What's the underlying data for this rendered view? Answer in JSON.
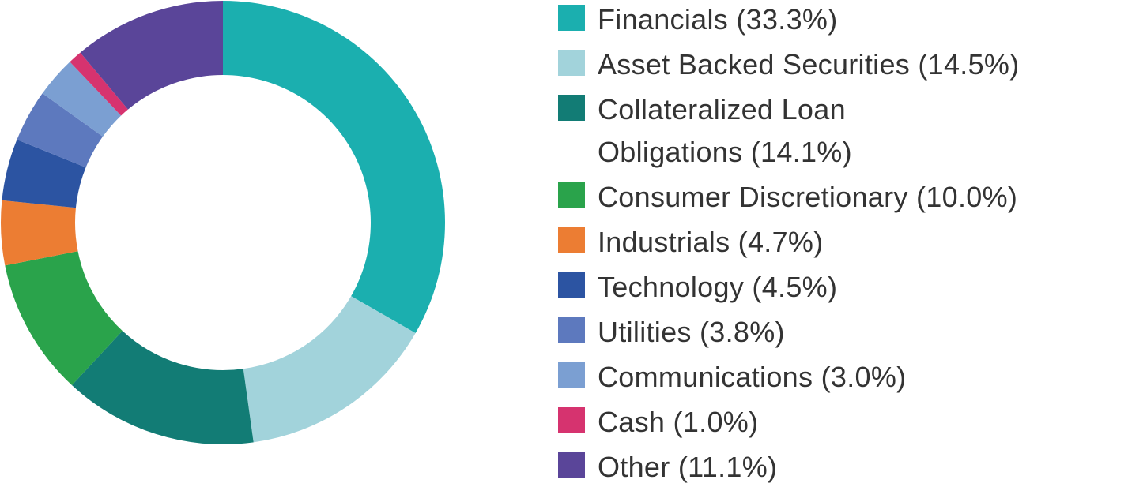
{
  "chart_data": {
    "type": "pie",
    "variant": "donut",
    "legend_position": "right",
    "series": [
      {
        "categories": [
          "Financials",
          "Asset Backed Securities",
          "Collateralized Loan Obligations",
          "Consumer Discretionary",
          "Industrials",
          "Technology",
          "Utilities",
          "Communications",
          "Cash",
          "Other"
        ],
        "values": [
          33.3,
          14.5,
          14.1,
          10.0,
          4.7,
          4.5,
          3.8,
          3.0,
          1.0,
          11.1
        ],
        "colors": [
          "#1bafaf",
          "#a2d3db",
          "#127c75",
          "#2aa34b",
          "#ec7d33",
          "#2c54a2",
          "#5d79be",
          "#7b9fd2",
          "#d6336f",
          "#5a4599"
        ]
      }
    ],
    "legend": [
      {
        "lines": [
          "Financials (33.3%)"
        ]
      },
      {
        "lines": [
          "Asset Backed Securities (14.5%)"
        ]
      },
      {
        "lines": [
          "Collateralized Loan",
          "Obligations (14.1%)"
        ]
      },
      {
        "lines": [
          "Consumer Discretionary (10.0%)"
        ]
      },
      {
        "lines": [
          "Industrials (4.7%)"
        ]
      },
      {
        "lines": [
          "Technology (4.5%)"
        ]
      },
      {
        "lines": [
          "Utilities (3.8%)"
        ]
      },
      {
        "lines": [
          "Communications (3.0%)"
        ]
      },
      {
        "lines": [
          "Cash (1.0%)"
        ]
      },
      {
        "lines": [
          "Other (11.1%)"
        ]
      }
    ]
  }
}
